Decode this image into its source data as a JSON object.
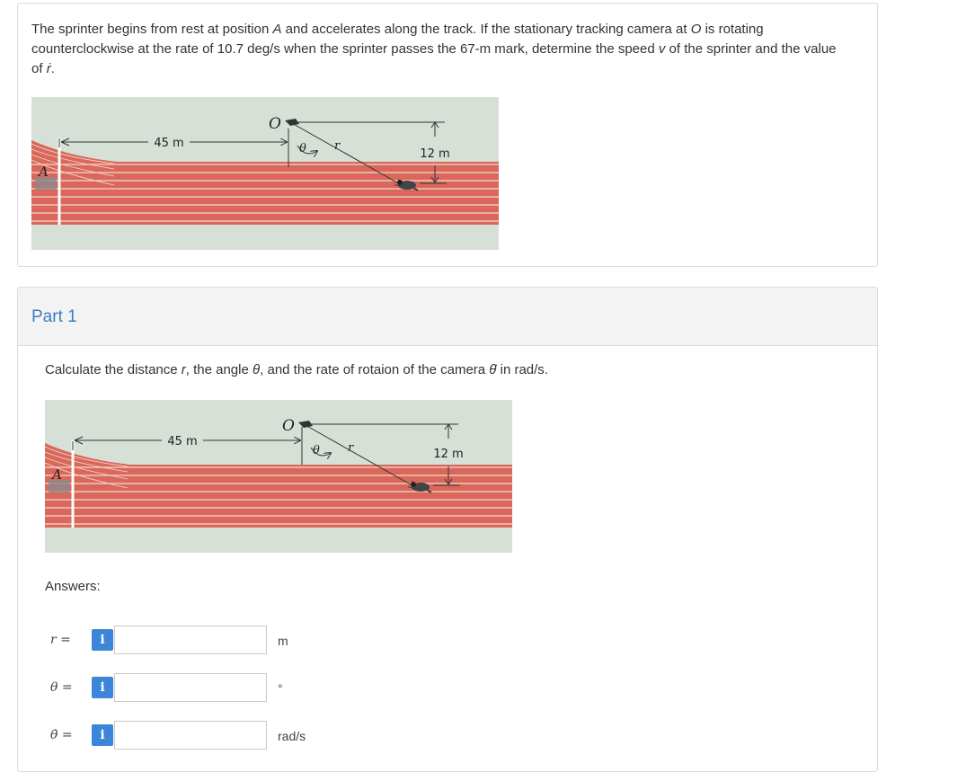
{
  "problem": {
    "text_part1": "The sprinter begins from rest at position ",
    "var_A": "A",
    "text_part2": " and accelerates along the track. If the stationary tracking camera at ",
    "var_O": "O",
    "text_part3": " is rotating counterclockwise at the rate of 10.7 deg/s when the sprinter passes the 67-m mark, determine the speed ",
    "var_v": "v",
    "text_part4": " of the sprinter and the value of ",
    "var_rdot": "ṙ",
    "text_part5": "."
  },
  "figure": {
    "label_A": "A",
    "label_O": "O",
    "label_theta": "θ",
    "label_r": "r",
    "dim_45": "45 m",
    "dim_12": "12 m"
  },
  "part": {
    "title": "Part 1",
    "instr_part1": "Calculate the distance ",
    "instr_r": "r",
    "instr_part2": ", the angle ",
    "instr_theta": "θ",
    "instr_part3": ", and the rate of rotaion of the camera ",
    "instr_thetadot": "θ̇",
    "instr_part4": " in rad/s.",
    "answers_label": "Answers:"
  },
  "answers": [
    {
      "symbol": "r =",
      "info": "i",
      "value": "",
      "unit": "m"
    },
    {
      "symbol": "θ =",
      "info": "i",
      "value": "",
      "unit": "°"
    },
    {
      "symbol": "θ̇ =",
      "info": "i",
      "value": "",
      "unit": "rad/s"
    }
  ],
  "colors": {
    "track_red": "#d9685a",
    "grass": "#d6e0d6",
    "link_blue": "#3b7dc4",
    "info_blue": "#3b86d8"
  }
}
